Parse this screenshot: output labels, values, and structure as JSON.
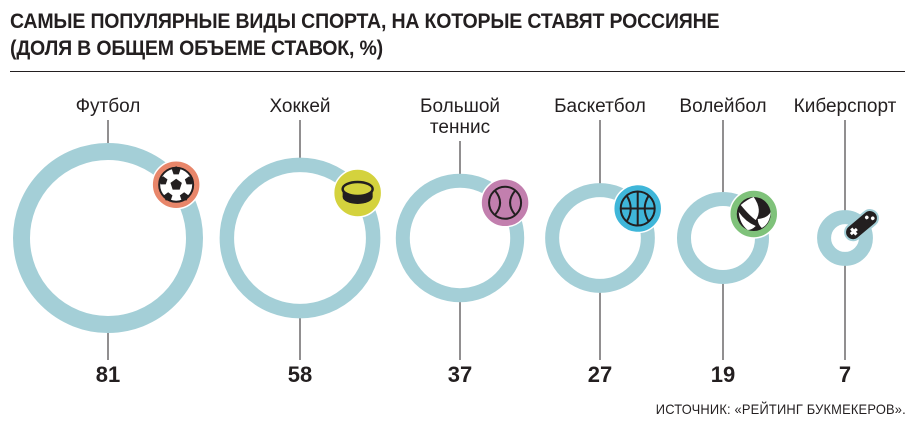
{
  "title_line1": "САМЫЕ ПОПУЛЯРНЫЕ ВИДЫ СПОРТА, НА КОТОРЫЕ СТАВЯТ РОССИЯНЕ",
  "title_line2": "(ДОЛЯ В ОБЩЕМ ОБЪЕМЕ СТАВОК, %)",
  "source": "ИСТОЧНИК: «РЕЙТИНГ БУКМЕКЕРОВ».",
  "colors": {
    "ring": "#a4cfd7",
    "text": "#231f20",
    "leader": "#231f20"
  },
  "chart_data": {
    "type": "bubble",
    "unit": "%",
    "categories": [
      "Футбол",
      "Хоккей",
      "Большой теннис",
      "Баскетбол",
      "Волейбол",
      "Киберспорт"
    ],
    "values": [
      81,
      58,
      37,
      27,
      19,
      7
    ],
    "icons": [
      {
        "name": "football-icon",
        "color": "#e8866a"
      },
      {
        "name": "hockey-puck-icon",
        "color": "#d4d23d"
      },
      {
        "name": "tennis-ball-icon",
        "color": "#c27fae"
      },
      {
        "name": "basketball-icon",
        "color": "#3fb6d9"
      },
      {
        "name": "volleyball-icon",
        "color": "#7fc27a"
      },
      {
        "name": "gamepad-icon",
        "color": "#a4cfd7"
      }
    ]
  }
}
